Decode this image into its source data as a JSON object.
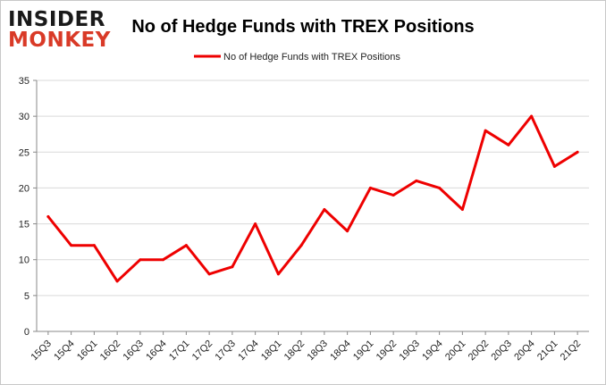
{
  "logo": {
    "line1": "INSIDER",
    "line2": "MONKEY"
  },
  "chart_data": {
    "type": "line",
    "title": "No of Hedge Funds with TREX Positions",
    "xlabel": "",
    "ylabel": "",
    "ylim": [
      0,
      35
    ],
    "yticks": [
      0,
      5,
      10,
      15,
      20,
      25,
      30,
      35
    ],
    "grid": true,
    "legend_position": "top-center",
    "categories": [
      "15Q3",
      "15Q4",
      "16Q1",
      "16Q2",
      "16Q3",
      "16Q4",
      "17Q1",
      "17Q2",
      "17Q3",
      "17Q4",
      "18Q1",
      "18Q2",
      "18Q3",
      "18Q4",
      "19Q1",
      "19Q2",
      "19Q3",
      "19Q4",
      "20Q1",
      "20Q2",
      "20Q3",
      "20Q4",
      "21Q1",
      "21Q2"
    ],
    "series": [
      {
        "name": "No of Hedge Funds with TREX Positions",
        "color": "#ee0000",
        "values": [
          16,
          12,
          12,
          7,
          10,
          10,
          12,
          8,
          9,
          15,
          8,
          12,
          17,
          14,
          20,
          19,
          21,
          20,
          17,
          28,
          26,
          30,
          23,
          25
        ]
      }
    ]
  }
}
